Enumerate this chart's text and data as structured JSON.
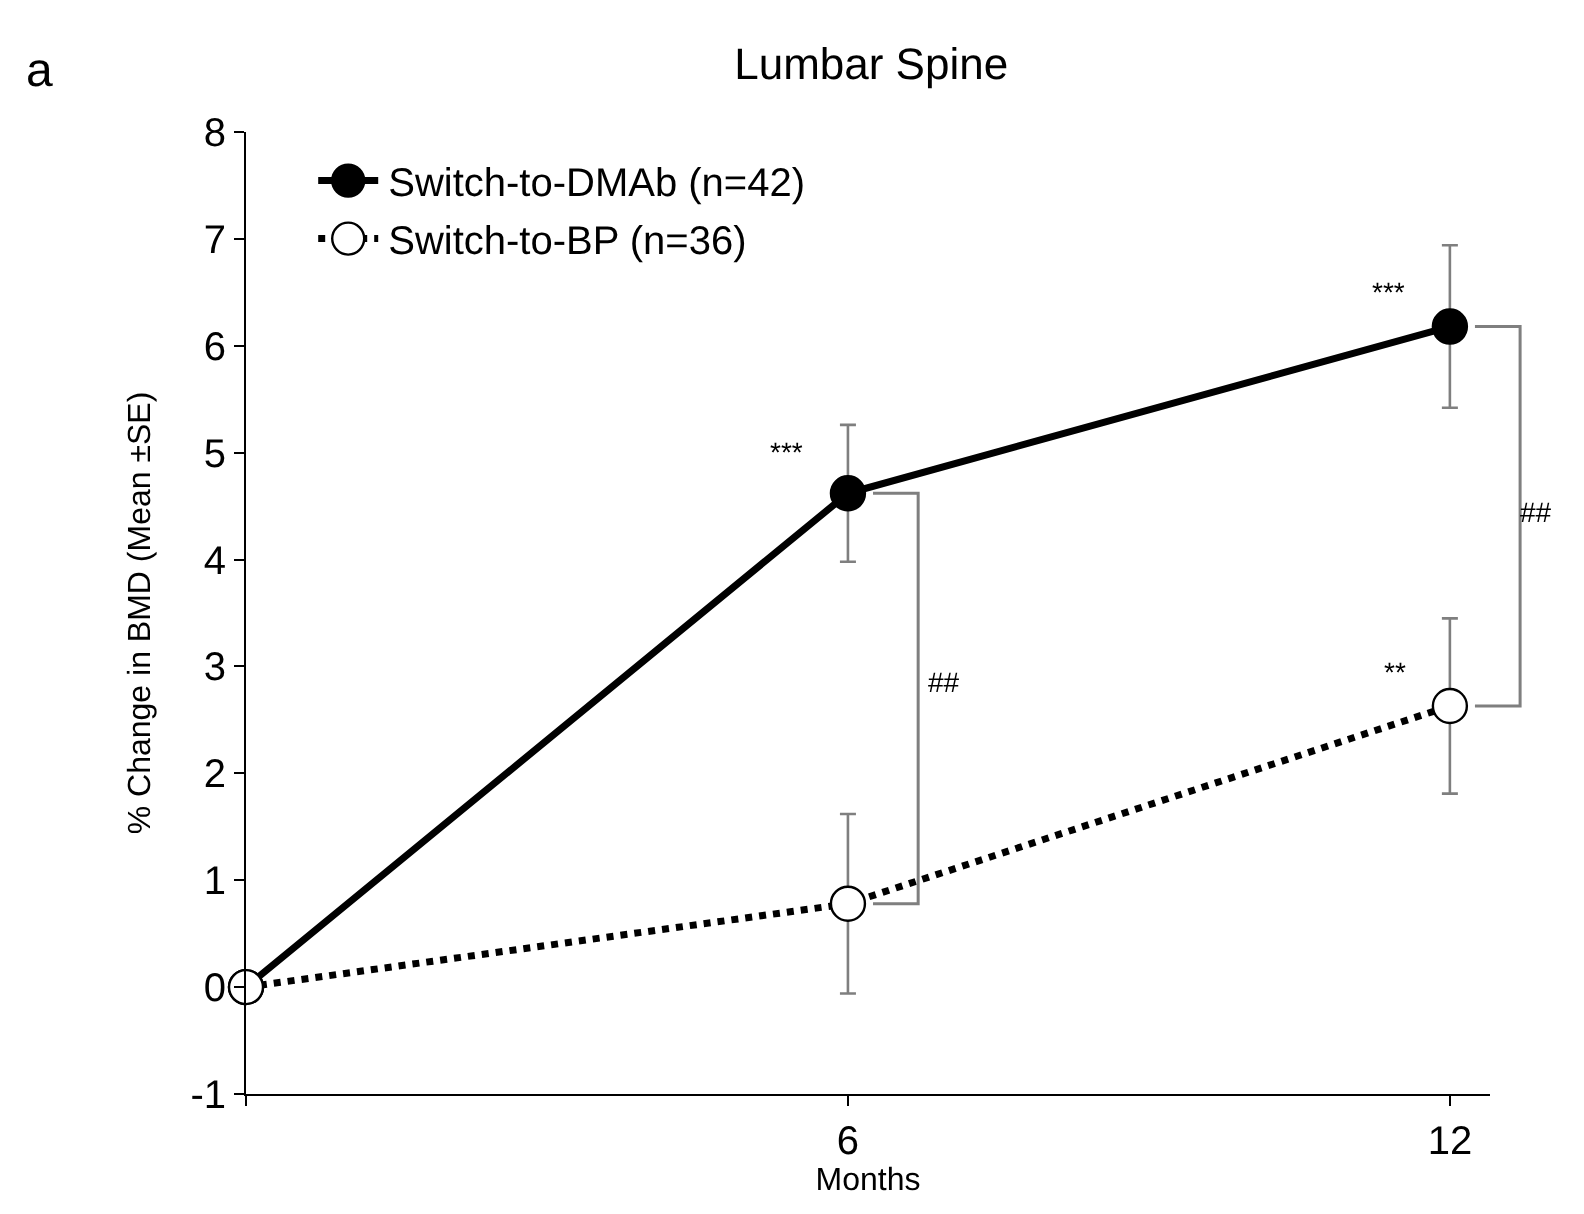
{
  "chart_data": {
    "type": "line",
    "title": "Lumbar Spine",
    "xlabel": "Months",
    "ylabel": "% Change in BMD (Mean ±SE)",
    "x": [
      0,
      6,
      12
    ],
    "xlim": [
      0,
      12.4
    ],
    "xticks": [
      {
        "value": 0,
        "label": null
      },
      6,
      12
    ],
    "ylim": [
      -1,
      8
    ],
    "yticks": [
      -1,
      0,
      1,
      2,
      3,
      4,
      5,
      6,
      7,
      8
    ],
    "series": [
      {
        "name": "Switch-to-DMAb (n=42)",
        "color": "#000000",
        "values": [
          0,
          4.62,
          6.18
        ],
        "errors": [
          null,
          0.64,
          0.76
        ],
        "marker": "circle",
        "line_style": "solid"
      },
      {
        "name": "Switch-to-BP (n=36)",
        "color": "#000000",
        "values": [
          0,
          0.78,
          2.63
        ],
        "errors": [
          null,
          0.84,
          0.82
        ],
        "marker": "circle",
        "line_style": "dotted"
      }
    ],
    "annotations": [
      "a",
      "***",
      "***",
      "**",
      "##",
      "##"
    ],
    "legend": "top left"
  }
}
